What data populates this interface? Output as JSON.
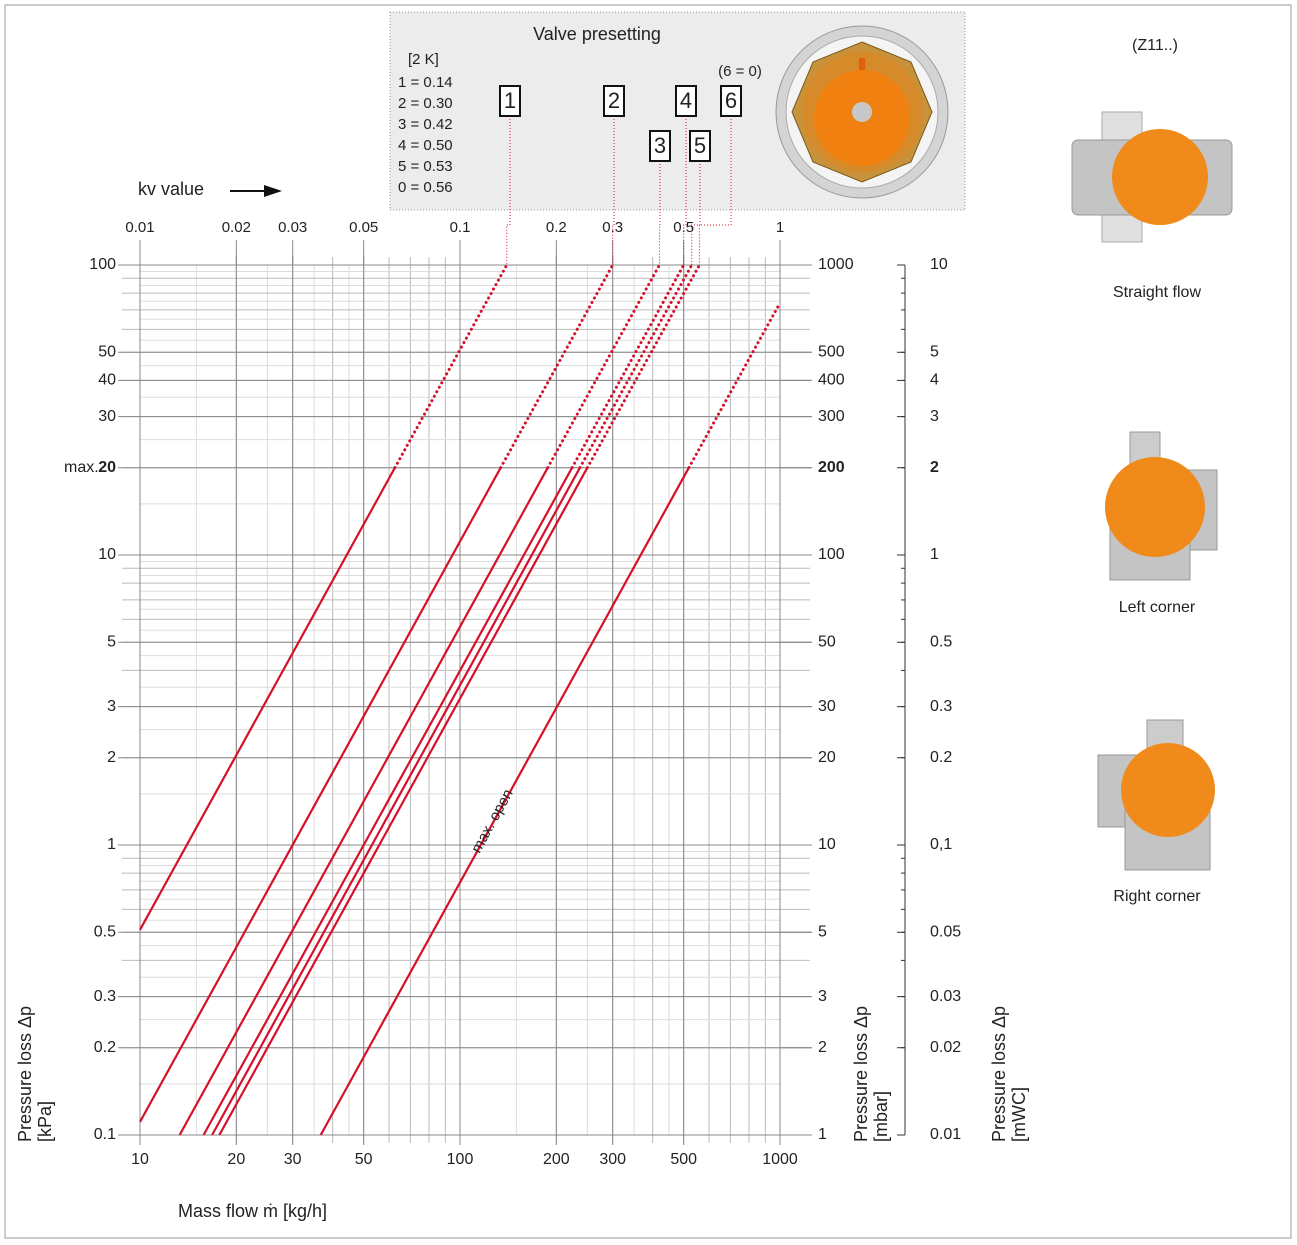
{
  "presetting": {
    "title": "Valve presetting",
    "unit": "[2 K]",
    "rows": [
      "1 = 0.14",
      "2 = 0.30",
      "3 = 0.42",
      "4 = 0.50",
      "5 = 0.53",
      "0 = 0.56"
    ],
    "note": "(6 = 0)"
  },
  "valve_types": {
    "model": "(Z11..)",
    "items": [
      "Straight flow",
      "Left corner",
      "Right corner"
    ]
  },
  "chart_data": {
    "type": "line",
    "log_x": true,
    "log_y": true,
    "grid": true,
    "x_label": "Mass flow ṁ [kg/h]",
    "x2_label": "kv value",
    "y_label": "Pressure loss Δp",
    "y_unit": "[kPa]",
    "y2_label": "Pressure loss Δp",
    "y2_unit": "[mbar]",
    "y3_label": "Pressure loss Δp",
    "y3_unit": "[mWC]",
    "max_label": "max.",
    "max_value": 20,
    "xlim": [
      10,
      1000
    ],
    "xticks": [
      10,
      20,
      30,
      50,
      100,
      200,
      300,
      500,
      1000
    ],
    "x2lim": [
      0.01,
      1
    ],
    "x2ticks": [
      0.01,
      0.02,
      0.03,
      0.05,
      0.1,
      0.2,
      0.3,
      0.5,
      1
    ],
    "ylim": [
      0.1,
      100
    ],
    "yticks": [
      0.1,
      0.2,
      0.3,
      0.5,
      1,
      2,
      3,
      5,
      10,
      20,
      30,
      40,
      50,
      100
    ],
    "y2lim": [
      1,
      1000
    ],
    "y2ticks": [
      1,
      2,
      3,
      5,
      10,
      20,
      30,
      50,
      100,
      200,
      300,
      400,
      500,
      1000
    ],
    "y3lim": [
      0.01,
      10
    ],
    "y3ticks": [
      0.01,
      0.02,
      0.03,
      0.05,
      {
        "value": 0.1,
        "label": "0,1"
      },
      0.2,
      0.3,
      0.5,
      1,
      2,
      3,
      4,
      5,
      10
    ],
    "series": [
      {
        "name": "1",
        "color": "#d7102a",
        "x": [
          10,
          62.6,
          140
        ],
        "values": [
          0.51,
          20,
          100
        ]
      },
      {
        "name": "2",
        "color": "#d7102a",
        "x": [
          10,
          134,
          300
        ],
        "values": [
          0.111,
          20,
          100
        ]
      },
      {
        "name": "3",
        "color": "#d7102a",
        "x": [
          13.3,
          188,
          420
        ],
        "values": [
          0.1,
          20,
          100
        ]
      },
      {
        "name": "4",
        "color": "#d7102a",
        "x": [
          15.8,
          224,
          500
        ],
        "values": [
          0.1,
          20,
          100
        ]
      },
      {
        "name": "5",
        "color": "#d7102a",
        "x": [
          16.8,
          237,
          530
        ],
        "values": [
          0.1,
          20,
          100
        ]
      },
      {
        "name": "6",
        "color": "#d7102a",
        "x": [
          17.7,
          250,
          560
        ],
        "values": [
          0.1,
          20,
          100
        ]
      },
      {
        "name": "max. open",
        "color": "#d7102a",
        "x": [
          36.7,
          519,
          1000
        ],
        "values": [
          0.1,
          20,
          74
        ]
      }
    ]
  }
}
